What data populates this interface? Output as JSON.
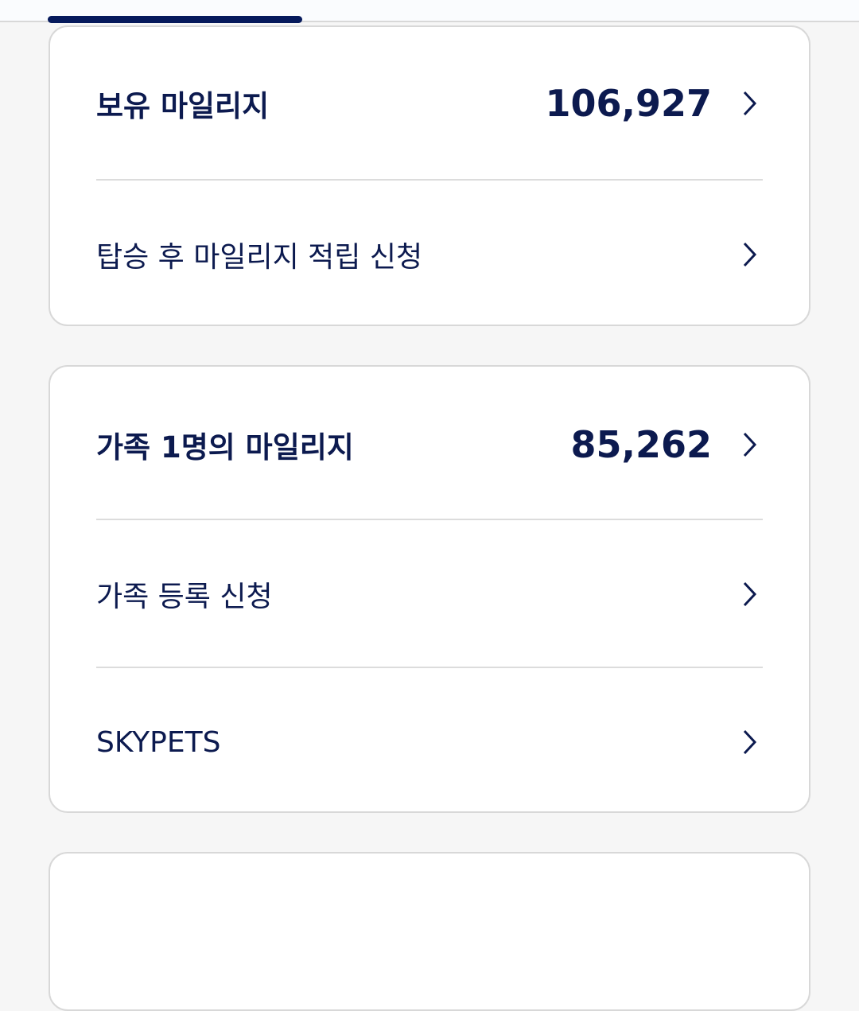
{
  "tabs": {
    "active_indicator_color": "#061a5c"
  },
  "cards": [
    {
      "title": "보유 마일리지",
      "value": "106,927",
      "items": [
        "탑승 후 마일리지 적립 신청"
      ]
    },
    {
      "title": "가족 1명의 마일리지",
      "value": "85,262",
      "items": [
        "가족 등록 신청",
        "SKYPETS"
      ]
    }
  ],
  "icons": {
    "chevron": "chevron-right-icon"
  }
}
